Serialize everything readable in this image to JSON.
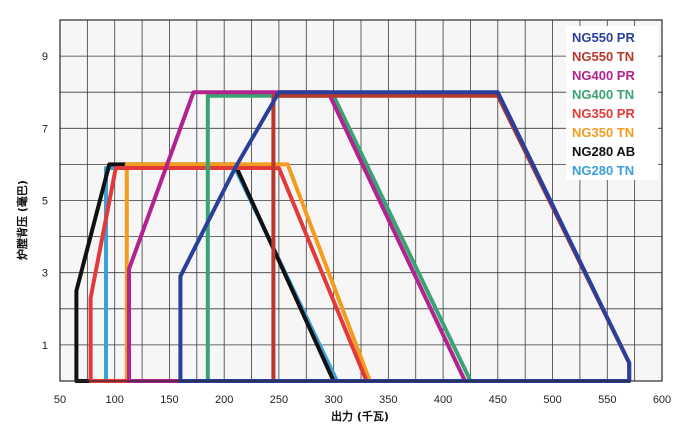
{
  "chart_data": {
    "type": "line",
    "xlabel": "出力 (千瓦)",
    "ylabel": "炉膛背压 (毫巴)",
    "xlim": [
      50,
      600
    ],
    "ylim": [
      0,
      10
    ],
    "x_ticks": [
      "50",
      "100",
      "150",
      "200",
      "250",
      "300",
      "350",
      "400",
      "450",
      "500",
      "550",
      "600"
    ],
    "x_tick_values": [
      50,
      100,
      150,
      200,
      250,
      300,
      350,
      400,
      450,
      500,
      550,
      600
    ],
    "y_ticks": [
      "1",
      "3",
      "5",
      "7",
      "9"
    ],
    "y_tick_values": [
      1,
      3,
      5,
      7,
      9
    ],
    "grid": true,
    "legend_position": "top-right",
    "series": [
      {
        "name": "NG550 PR",
        "color": "#2a3f9a",
        "points": [
          [
            160,
            0
          ],
          [
            570,
            0
          ],
          [
            570,
            0.5
          ],
          [
            450,
            8
          ],
          [
            250,
            8
          ],
          [
            210,
            5.9
          ],
          [
            160,
            2.9
          ],
          [
            160,
            0
          ]
        ]
      },
      {
        "name": "NG550 TN",
        "color": "#b8392b",
        "points": [
          [
            245,
            0
          ],
          [
            570,
            0
          ],
          [
            570,
            0.5
          ],
          [
            450,
            7.9
          ],
          [
            245,
            7.9
          ],
          [
            245,
            0
          ]
        ]
      },
      {
        "name": "NG400 PR",
        "color": "#b3238f",
        "points": [
          [
            113,
            0
          ],
          [
            420,
            0
          ],
          [
            295,
            8
          ],
          [
            172,
            8
          ],
          [
            113,
            3.1
          ],
          [
            113,
            0
          ]
        ]
      },
      {
        "name": "NG400 TN",
        "color": "#3aa374",
        "points": [
          [
            185,
            0
          ],
          [
            425,
            0
          ],
          [
            300,
            7.9
          ],
          [
            185,
            7.9
          ],
          [
            185,
            0
          ]
        ]
      },
      {
        "name": "NG350 PR",
        "color": "#e23a3a",
        "points": [
          [
            78,
            0
          ],
          [
            330,
            0
          ],
          [
            250,
            5.9
          ],
          [
            101,
            5.9
          ],
          [
            78,
            2.3
          ],
          [
            78,
            0
          ]
        ]
      },
      {
        "name": "NG350 TN",
        "color": "#f39c1e",
        "points": [
          [
            111,
            0
          ],
          [
            333,
            0
          ],
          [
            258,
            6
          ],
          [
            111,
            6
          ],
          [
            111,
            0
          ]
        ]
      },
      {
        "name": "NG280 AB",
        "color": "#111111",
        "points": [
          [
            65,
            0
          ],
          [
            300,
            0
          ],
          [
            210,
            6
          ],
          [
            95,
            6
          ],
          [
            65,
            2.5
          ],
          [
            65,
            0
          ]
        ]
      },
      {
        "name": "NG280 TN",
        "color": "#3aa0d8",
        "points": [
          [
            92,
            0
          ],
          [
            303,
            0
          ],
          [
            210,
            5.9
          ],
          [
            92,
            5.9
          ],
          [
            92,
            0
          ]
        ]
      }
    ]
  }
}
